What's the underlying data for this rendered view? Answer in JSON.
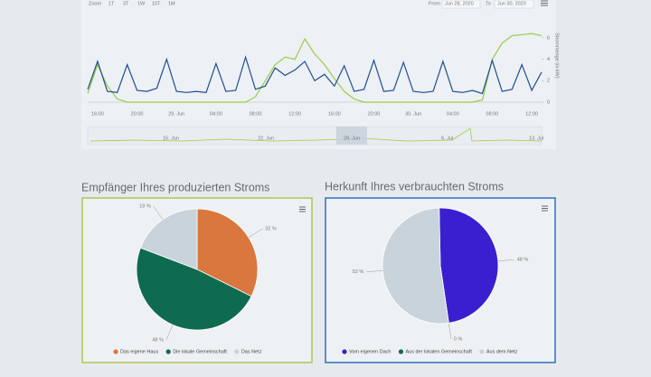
{
  "toolbar": {
    "zoom": "Zoom",
    "ranges": [
      "1T",
      "3T",
      "1W",
      "10T",
      "1M"
    ],
    "from_label": "From",
    "from": "Jun 28, 2020",
    "to_label": "To",
    "to": "Jun 30, 2020"
  },
  "navigator": {
    "labels": [
      "15. Jun",
      "22. Jun",
      "29. Jun",
      "6. Jul",
      "13. Jul"
    ]
  },
  "chart_data": [
    {
      "type": "line",
      "y_label": "Strommenge (in kW)",
      "categories": [
        null,
        "16:00",
        null,
        null,
        null,
        "20:00",
        null,
        null,
        null,
        "29. Jun",
        null,
        null,
        null,
        "04:00",
        null,
        null,
        null,
        "08:00",
        null,
        null,
        null,
        "12:00",
        null,
        null,
        null,
        "16:00",
        null,
        null,
        null,
        "20:00",
        null,
        null,
        null,
        "30. Jun",
        null,
        null,
        null,
        "04:00",
        null,
        null,
        null,
        "08:00",
        null,
        null,
        null,
        "12:00",
        null
      ],
      "series": [
        {
          "color": "#1f4f8f",
          "values": [
            1.2,
            3.8,
            1.0,
            0.9,
            3.5,
            1.1,
            1.0,
            1.3,
            4.0,
            1.0,
            0.9,
            1.0,
            0.9,
            3.6,
            1.0,
            1.1,
            4.2,
            1.2,
            1.5,
            3.2,
            2.5,
            3.0,
            3.8,
            2.0,
            2.6,
            1.5,
            3.4,
            1.0,
            1.2,
            3.9,
            1.0,
            1.1,
            3.7,
            1.0,
            0.9,
            1.0,
            3.8,
            1.0,
            0.9,
            1.1,
            0.8,
            3.9,
            1.0,
            1.2,
            3.5,
            1.1,
            2.8
          ]
        },
        {
          "color": "#9ccc4a",
          "values": [
            0.8,
            3.5,
            1.5,
            0.3,
            0,
            0,
            0,
            0,
            0,
            0,
            0,
            0,
            0,
            0,
            0,
            0,
            0,
            0.5,
            2.0,
            3.5,
            4.2,
            4.0,
            5.9,
            4.5,
            3.5,
            2.2,
            1.0,
            0.3,
            0,
            0,
            0,
            0,
            0,
            0,
            0,
            0,
            0,
            0,
            0,
            0,
            0.2,
            4.0,
            5.5,
            6.2,
            6.3,
            6.4,
            6.2
          ]
        }
      ],
      "ylim": [
        0,
        7
      ],
      "yticks": [
        0,
        2,
        4,
        6
      ],
      "grid": false
    },
    {
      "type": "pie",
      "title": "Empfänger Ihres produzierten Stroms",
      "categories": [
        "Das eigene Haus",
        "Die lokale Gemeinschaft",
        "Das Netz"
      ],
      "values": [
        32,
        48,
        19
      ],
      "value_labels": [
        "32 %",
        "48 %",
        "19 %"
      ],
      "colors": [
        "#d9773f",
        "#0f6b50",
        "#c9d3dc"
      ],
      "border": "#a9c94e"
    },
    {
      "type": "pie",
      "title": "Herkunft Ihres verbrauchten Stroms",
      "categories": [
        "Vom eigenen Dach",
        "Aus der lokalen Gemeinschaft",
        "Aus dem Netz"
      ],
      "values": [
        48,
        0,
        52
      ],
      "value_labels": [
        "48 %",
        "0 %",
        "52 %"
      ],
      "colors": [
        "#3a1fd0",
        "#0f6b50",
        "#c9d3dc"
      ],
      "border": "#2f6fc4"
    }
  ]
}
